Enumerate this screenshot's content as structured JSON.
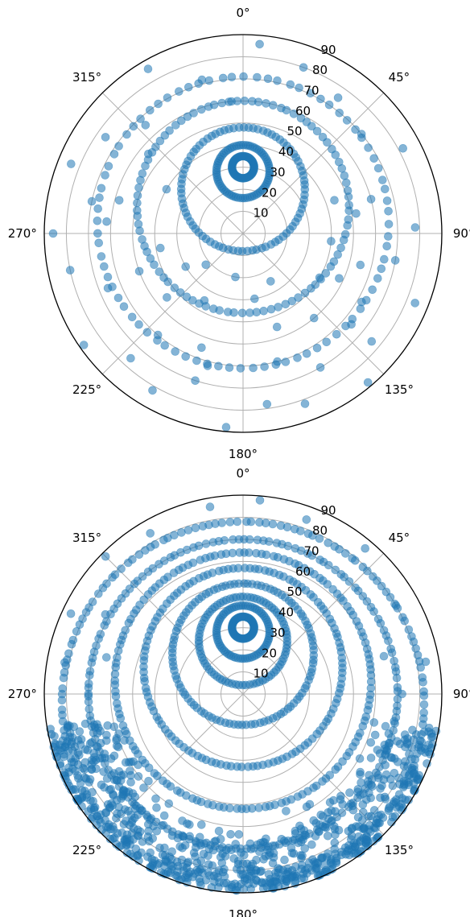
{
  "colors": {
    "marker": "#1f77b4",
    "grid": "#b0b0b0",
    "spine": "#000000",
    "background": "#ffffff"
  },
  "chart_data": [
    {
      "type": "scatter",
      "projection": "polar",
      "theta_zero_location": "N",
      "theta_direction": "clockwise",
      "r_origin_zenith": true,
      "grid": true,
      "marker_alpha": 0.55,
      "rlim": [
        0,
        90
      ],
      "theta_ticks": [
        {
          "deg": 0,
          "label": "0°"
        },
        {
          "deg": 45,
          "label": "45°"
        },
        {
          "deg": 90,
          "label": "90°"
        },
        {
          "deg": 135,
          "label": "135°"
        },
        {
          "deg": 180,
          "label": "180°"
        },
        {
          "deg": 225,
          "label": "225°"
        },
        {
          "deg": 270,
          "label": "270°"
        },
        {
          "deg": 315,
          "label": "315°"
        }
      ],
      "r_ticks": [
        {
          "value": 10,
          "label": "10"
        },
        {
          "value": 20,
          "label": "20"
        },
        {
          "value": 30,
          "label": "30"
        },
        {
          "value": 40,
          "label": "40"
        },
        {
          "value": 50,
          "label": "50"
        },
        {
          "value": 60,
          "label": "60"
        },
        {
          "value": 70,
          "label": "70"
        },
        {
          "value": 80,
          "label": "80"
        },
        {
          "value": 90,
          "label": "90"
        }
      ],
      "series": [
        {
          "encoding": "zenith angle r (deg) = |cy + ry*cos(t)|, azimuth theta (deg) = cx + rx*sin(t) for t sampled uniformly; plus scattered points",
          "tracks": [
            {
              "cx": 0,
              "cy": 30,
              "rx": 0,
              "ry": 0,
              "ring": 5,
              "count": 60
            },
            {
              "cx": 0,
              "cy": 28,
              "rx": 0,
              "ry": 0,
              "ring": 12,
              "count": 70
            },
            {
              "cx": 0,
              "cy": 20,
              "rx": 0,
              "ry": 0,
              "ring": 28,
              "count": 80
            },
            {
              "cx": 0,
              "cy": 12,
              "rx": 0,
              "ry": 0,
              "ring": 48,
              "count": 90
            },
            {
              "cx": 0,
              "cy": 5,
              "rx": 0,
              "ry": 0,
              "ring": 66,
              "count": 80
            }
          ],
          "scatter_points": [
            [
              5,
              86
            ],
            [
              20,
              80
            ],
            [
              35,
              75
            ],
            [
              50,
              70
            ],
            [
              62,
              82
            ],
            [
              75,
              60
            ],
            [
              88,
              78
            ],
            [
              100,
              70
            ],
            [
              112,
              84
            ],
            [
              120,
              62
            ],
            [
              130,
              76
            ],
            [
              140,
              88
            ],
            [
              150,
              70
            ],
            [
              160,
              82
            ],
            [
              172,
              78
            ],
            [
              185,
              88
            ],
            [
              198,
              70
            ],
            [
              210,
              82
            ],
            [
              222,
              76
            ],
            [
              235,
              88
            ],
            [
              248,
              66
            ],
            [
              258,
              80
            ],
            [
              270,
              86
            ],
            [
              282,
              70
            ],
            [
              292,
              84
            ],
            [
              305,
              76
            ],
            [
              318,
              66
            ],
            [
              330,
              86
            ],
            [
              345,
              72
            ],
            [
              355,
              60
            ],
            [
              105,
              55
            ],
            [
              140,
              50
            ],
            [
              160,
              45
            ],
            [
              200,
              55
            ],
            [
              230,
              45
            ],
            [
              250,
              50
            ],
            [
              285,
              58
            ],
            [
              120,
              40
            ],
            [
              170,
              30
            ],
            [
              210,
              35
            ],
            [
              240,
              30
            ],
            [
              95,
              40
            ],
            [
              150,
              25
            ],
            [
              190,
              20
            ],
            [
              230,
              22
            ],
            [
              260,
              38
            ],
            [
              300,
              40
            ],
            [
              130,
              64
            ],
            [
              165,
              60
            ],
            [
              195,
              62
            ],
            [
              220,
              60
            ],
            [
              275,
              62
            ],
            [
              310,
              56
            ],
            [
              70,
              44
            ],
            [
              80,
              52
            ],
            [
              115,
              48
            ]
          ]
        }
      ]
    },
    {
      "type": "scatter",
      "projection": "polar",
      "theta_zero_location": "N",
      "theta_direction": "clockwise",
      "r_origin_zenith": true,
      "grid": true,
      "marker_alpha": 0.55,
      "rlim": [
        0,
        90
      ],
      "theta_ticks": [
        {
          "deg": 0,
          "label": "0°"
        },
        {
          "deg": 45,
          "label": "45°"
        },
        {
          "deg": 90,
          "label": "90°"
        },
        {
          "deg": 135,
          "label": "135°"
        },
        {
          "deg": 180,
          "label": "180°"
        },
        {
          "deg": 225,
          "label": "225°"
        },
        {
          "deg": 270,
          "label": "270°"
        },
        {
          "deg": 315,
          "label": "315°"
        }
      ],
      "r_ticks": [
        {
          "value": 10,
          "label": "10"
        },
        {
          "value": 20,
          "label": "20"
        },
        {
          "value": 30,
          "label": "30"
        },
        {
          "value": 40,
          "label": "40"
        },
        {
          "value": 50,
          "label": "50"
        },
        {
          "value": 60,
          "label": "60"
        },
        {
          "value": 70,
          "label": "70"
        },
        {
          "value": 80,
          "label": "80"
        },
        {
          "value": 90,
          "label": "90"
        }
      ],
      "series": [
        {
          "encoding": "zenith angle r (deg) = |cy + ry*cos(t)|, azimuth theta (deg) = cx + rx*sin(t) for t sampled uniformly; plus scattered points",
          "tracks": [
            {
              "cx": 0,
              "cy": 30,
              "rx": 0,
              "ry": 0,
              "ring": 5,
              "count": 60
            },
            {
              "cx": 0,
              "cy": 28,
              "rx": 0,
              "ry": 0,
              "ring": 12,
              "count": 70
            },
            {
              "cx": 0,
              "cy": 24,
              "rx": 0,
              "ry": 0,
              "ring": 20,
              "count": 80
            },
            {
              "cx": 0,
              "cy": 18,
              "rx": 0,
              "ry": 0,
              "ring": 32,
              "count": 100
            },
            {
              "cx": 0,
              "cy": 12,
              "rx": 0,
              "ry": 0,
              "ring": 45,
              "count": 120
            },
            {
              "cx": 0,
              "cy": 6,
              "rx": 0,
              "ry": 0,
              "ring": 58,
              "count": 140
            },
            {
              "cx": 0,
              "cy": 0,
              "rx": 0,
              "ry": 0,
              "ring": 70,
              "count": 150
            },
            {
              "cx": 0,
              "cy": -4,
              "rx": 0,
              "ry": 0,
              "ring": 82,
              "count": 160
            }
          ],
          "dense_band": {
            "theta_min": 100,
            "theta_max": 260,
            "r_min": 55,
            "r_max": 90,
            "count": 700
          },
          "scatter_points": [
            [
              5,
              88
            ],
            [
              20,
              84
            ],
            [
              40,
              86
            ],
            [
              60,
              80
            ],
            [
              80,
              84
            ],
            [
              280,
              82
            ],
            [
              295,
              86
            ],
            [
              315,
              88
            ],
            [
              330,
              84
            ],
            [
              350,
              86
            ],
            [
              270,
              70
            ],
            [
              285,
              64
            ],
            [
              300,
              72
            ],
            [
              75,
              66
            ],
            [
              90,
              72
            ],
            [
              105,
              80
            ]
          ]
        }
      ]
    }
  ]
}
